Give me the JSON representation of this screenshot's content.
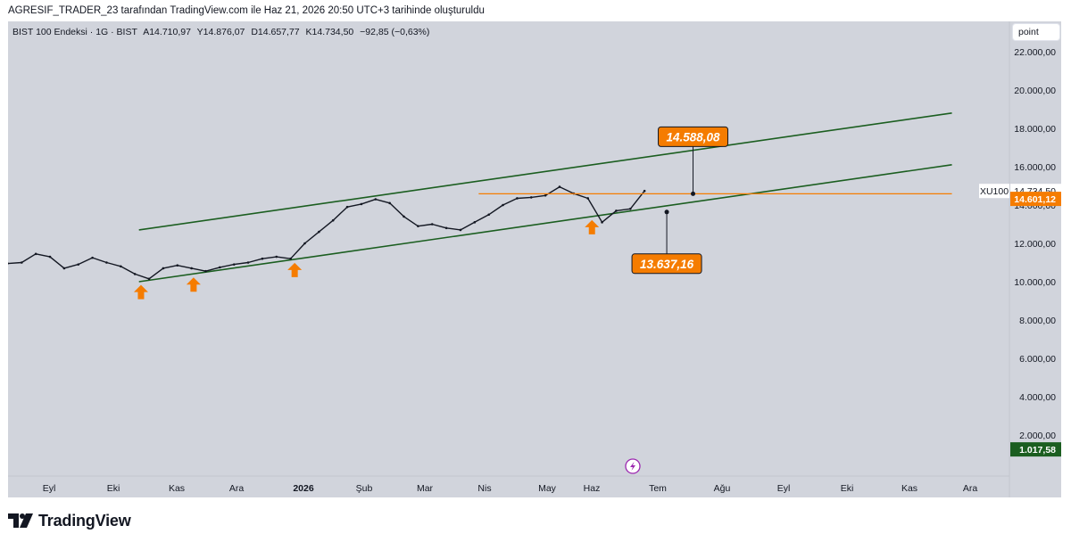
{
  "caption": "AGRESIF_TRADER_23 tarafından TradingView.com ile Haz 21, 2026 20:50 UTC+3 tarihinde oluşturuldu",
  "instrument": {
    "name": "BIST 100 Endeksi · 1G · BIST",
    "open": "A14.710,97",
    "high": "Y14.876,07",
    "low": "D14.657,77",
    "close": "K14.734,50",
    "change": "−92,85 (−0,63%)"
  },
  "scale_button": "point",
  "brand": "TradingView",
  "colors": {
    "background": "#d1d4dc",
    "channel": "#1b5e20",
    "accent": "#f57c00",
    "up_arrow": "#f57c00"
  },
  "chart_data": {
    "type": "line",
    "y_axis": {
      "range": [
        100,
        23000
      ],
      "ticks": [
        2000,
        4000,
        6000,
        8000,
        10000,
        12000,
        14000,
        16000,
        18000,
        20000,
        22000
      ],
      "tick_labels": [
        "2.000,00",
        "4.000,00",
        "6.000,00",
        "8.000,00",
        "10.000,00",
        "12.000,00",
        "14.000,00",
        "16.000,00",
        "18.000,00",
        "20.000,00",
        "22.000,00"
      ]
    },
    "x_axis": {
      "labels": [
        "Eyl",
        "Eki",
        "Kas",
        "Ara",
        "2026",
        "Şub",
        "Mar",
        "Nis",
        "May",
        "Haz",
        "Tem",
        "Ağu",
        "Eyl",
        "Eki",
        "Kas",
        "Ara"
      ],
      "bold_labels": [
        "2026"
      ]
    },
    "price_series": {
      "symbol": "XU100",
      "x": [
        "2025-08-10",
        "2025-08-17",
        "2025-08-24",
        "2025-08-31",
        "2025-09-07",
        "2025-09-14",
        "2025-09-21",
        "2025-09-28",
        "2025-10-05",
        "2025-10-12",
        "2025-10-19",
        "2025-10-26",
        "2025-11-02",
        "2025-11-09",
        "2025-11-16",
        "2025-11-23",
        "2025-11-30",
        "2025-12-07",
        "2025-12-14",
        "2025-12-21",
        "2025-12-28",
        "2026-01-04",
        "2026-01-11",
        "2026-01-18",
        "2026-01-25",
        "2026-02-01",
        "2026-02-08",
        "2026-02-15",
        "2026-02-22",
        "2026-03-01",
        "2026-03-08",
        "2026-03-15",
        "2026-03-22",
        "2026-03-29",
        "2026-04-05",
        "2026-04-12",
        "2026-04-19",
        "2026-04-26",
        "2026-05-03",
        "2026-05-10",
        "2026-05-17",
        "2026-05-24",
        "2026-05-31",
        "2026-06-07",
        "2026-06-14",
        "2026-06-21"
      ],
      "y": [
        10950,
        11000,
        11450,
        11300,
        10700,
        10900,
        11250,
        11000,
        10800,
        10400,
        10150,
        10700,
        10850,
        10700,
        10550,
        10750,
        10900,
        11000,
        11200,
        11300,
        11200,
        12000,
        12600,
        13200,
        13900,
        14050,
        14300,
        14100,
        13400,
        12900,
        13000,
        12800,
        12700,
        13100,
        13500,
        14000,
        14350,
        14400,
        14500,
        14950,
        14600,
        14350,
        13100,
        13700,
        13800,
        14734.5
      ]
    },
    "channel_upper": {
      "x": [
        "2025-10-14",
        "2026-11-20"
      ],
      "y": [
        12700,
        18800
      ]
    },
    "channel_lower": {
      "x": [
        "2025-10-14",
        "2026-11-20"
      ],
      "y": [
        10000,
        16100
      ]
    },
    "horizontal_level": {
      "x": [
        "2026-03-31",
        "2026-11-20"
      ],
      "y": 14588.08
    },
    "callouts": [
      {
        "label": "14.588,08",
        "x": "2026-07-15",
        "y": 14588.08
      },
      {
        "label": "13.637,16",
        "x": "2026-07-02",
        "y": 13637.16
      }
    ],
    "support_arrows": [
      "2025-10-15",
      "2025-11-10",
      "2025-12-30",
      "2026-05-26"
    ],
    "price_labels": [
      {
        "symbol": "XU100",
        "value": "14.734,50",
        "y": 14734.5,
        "style": "plain"
      },
      {
        "value": "14.601,12",
        "y": 14601.12,
        "style": "orange"
      },
      {
        "value": "1.017,58",
        "y": 1017.58,
        "style": "green"
      }
    ]
  }
}
